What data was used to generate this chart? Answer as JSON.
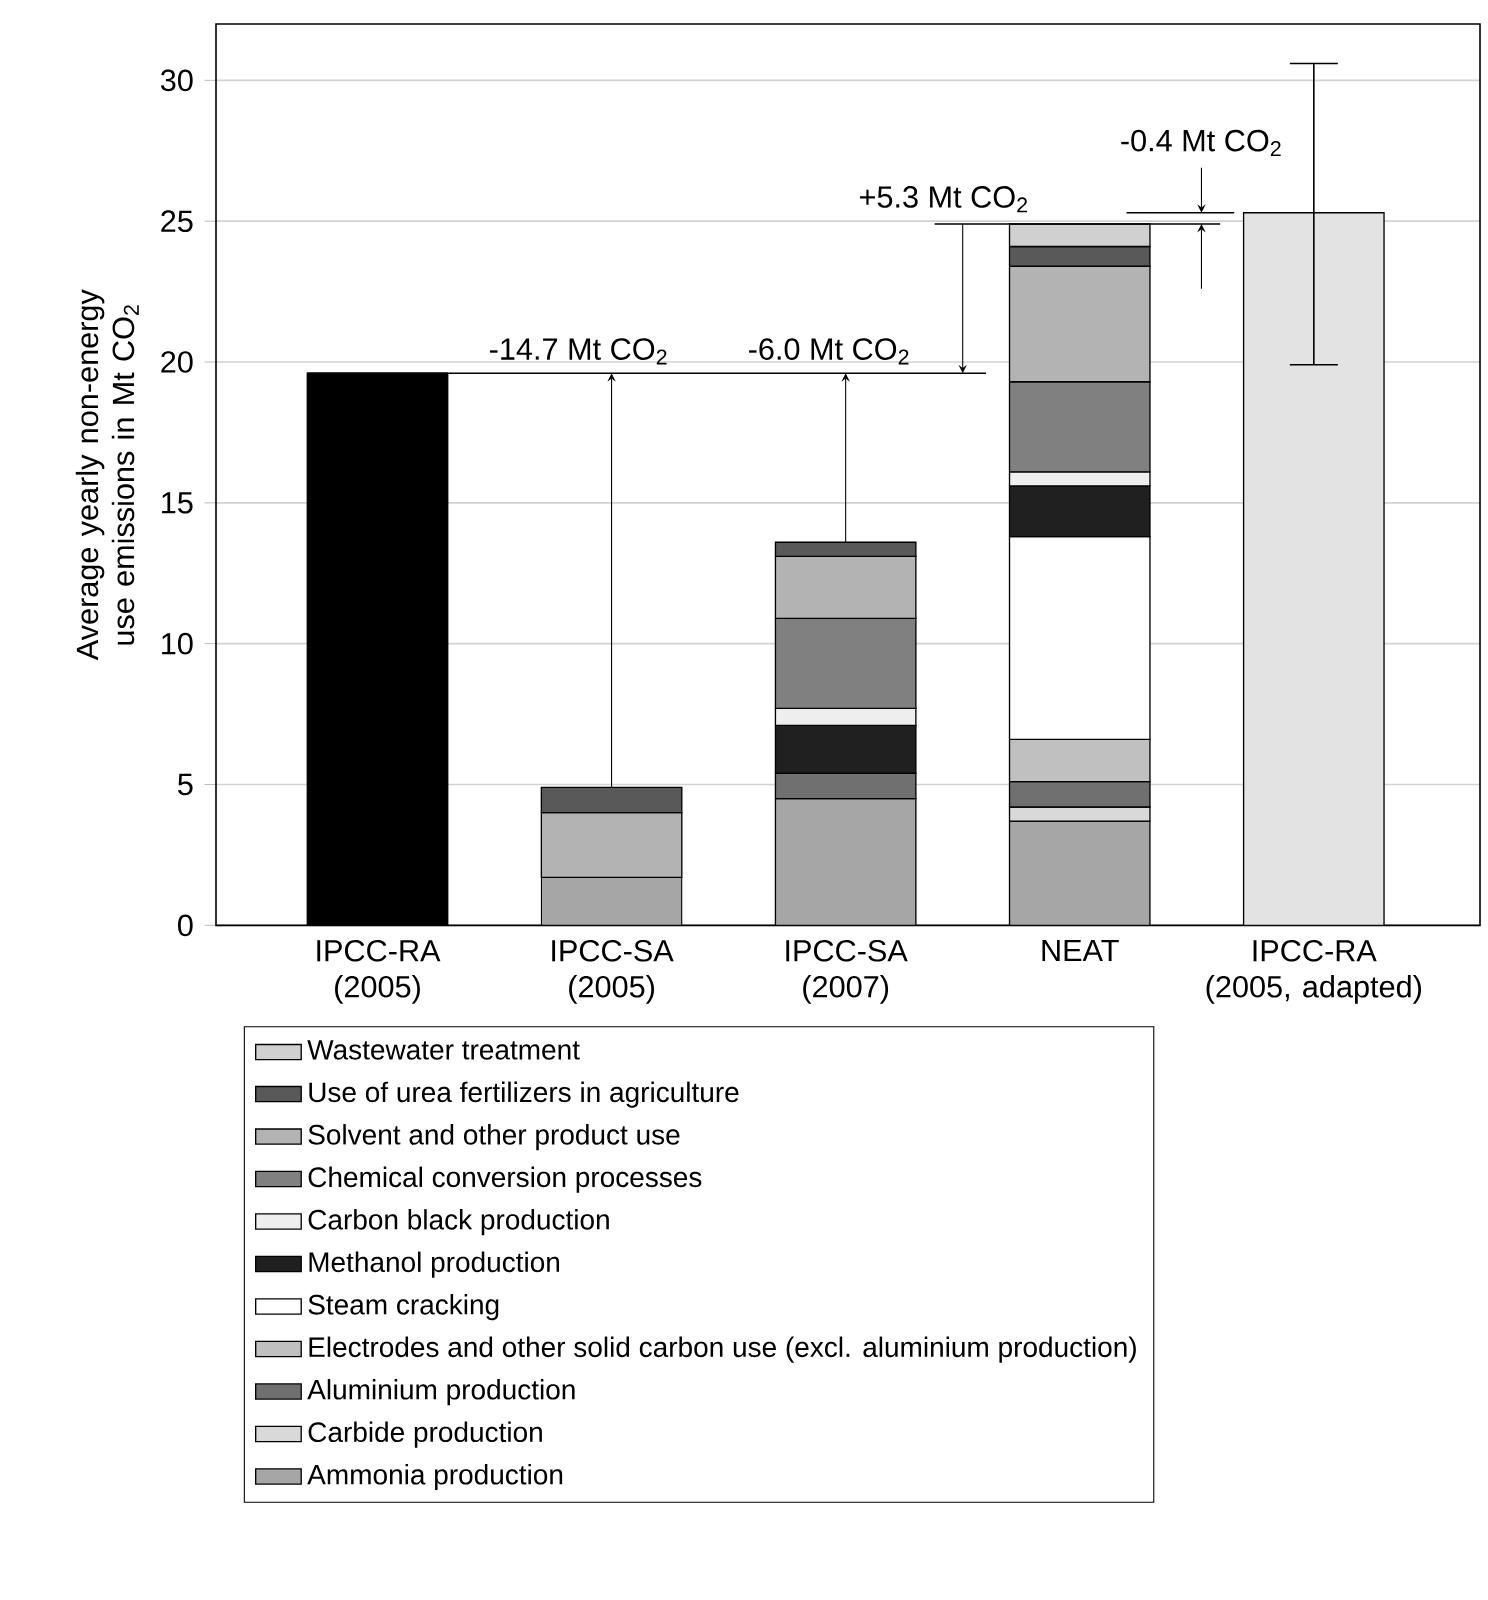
{
  "chart_data": {
    "type": "bar",
    "stacked": true,
    "ylabel": "Average yearly non-energy use emissions in Mt CO$_{2}$",
    "categories": [
      "IPCC-RA (2005)",
      "IPCC-SA (2005)",
      "IPCC-SA (2007)",
      "NEAT",
      "IPCC-RA (2005, adapted)"
    ],
    "series": [
      {
        "color": "#000000",
        "values": [
          19.6,
          null,
          null,
          null,
          null
        ]
      },
      {
        "name": "Ammonia production",
        "color": "#a6a6a6",
        "values": [
          null,
          1.7,
          4.5,
          3.7,
          null
        ]
      },
      {
        "name": "Carbide production",
        "color": "#d9d9d9",
        "values": [
          null,
          null,
          null,
          0.5,
          null
        ]
      },
      {
        "name": "Aluminium production",
        "color": "#707070",
        "values": [
          null,
          null,
          0.9,
          0.9,
          null
        ]
      },
      {
        "name": "Electrodes and other solid carbon use (excl. aluminium production)",
        "color": "#c0c0c0",
        "values": [
          null,
          null,
          null,
          1.5,
          null
        ]
      },
      {
        "name": "Steam cracking",
        "color": "#ffffff",
        "values": [
          null,
          null,
          null,
          7.2,
          null
        ]
      },
      {
        "name": "Methanol production",
        "color": "#202020",
        "values": [
          null,
          null,
          1.7,
          1.8,
          null
        ]
      },
      {
        "name": "Carbon black production",
        "color": "#eeeeee",
        "values": [
          null,
          null,
          0.6,
          0.5,
          null
        ]
      },
      {
        "name": "Chemical conversion processes",
        "color": "#808080",
        "values": [
          null,
          null,
          3.2,
          3.2,
          null
        ]
      },
      {
        "name": "Solvent and other product use",
        "color": "#b3b3b3",
        "values": [
          null,
          2.3,
          2.2,
          4.1,
          null
        ]
      },
      {
        "name": "Use of urea fertilizers in agriculture",
        "color": "#595959",
        "values": [
          null,
          0.9,
          0.5,
          0.7,
          null
        ]
      },
      {
        "name": "Wastewater treatment",
        "color": "#d0d0d0",
        "values": [
          null,
          null,
          null,
          0.8,
          null
        ]
      },
      {
        "color": "#e3e3e3",
        "values": [
          null,
          null,
          null,
          null,
          25.3
        ],
        "errors": [
          null,
          null,
          null,
          null,
          [
            19.9,
            30.6
          ]
        ]
      }
    ],
    "ylim": [
      0,
      32
    ],
    "yticks": [
      0,
      5,
      10,
      15,
      20,
      25,
      30
    ],
    "grid": "y",
    "legend": "bottom",
    "ref_lines": [
      {
        "axis": "y",
        "value": 19.6
      },
      {
        "axis": "y",
        "value": 24.9
      },
      {
        "axis": "y",
        "value": 25.3
      }
    ],
    "annotations": [
      {
        "text": "-14.7 Mt CO$_{2}$",
        "x": "IPCC-SA (2005)",
        "y": 4.9
      },
      {
        "text": "-6.0 Mt CO$_{2}$",
        "x": "IPCC-SA (2007)",
        "y": 13.6
      },
      {
        "text": "+5.3 Mt CO$_{2}$",
        "y": 24.9
      },
      {
        "text": "-0.4 Mt CO$_{2}$",
        "x": "IPCC-RA (2005, adapted)",
        "y": 25.3
      }
    ]
  }
}
